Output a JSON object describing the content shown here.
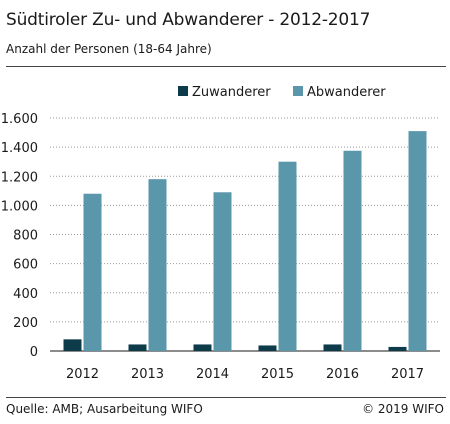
{
  "header": {
    "title": "Südtiroler Zu- und Abwanderer - 2012-2017",
    "subtitle": "Anzahl der Personen (18-64 Jahre)"
  },
  "footer": {
    "source": "Quelle: AMB; Ausarbeitung WIFO",
    "copyright": "© 2019 WIFO"
  },
  "colors": {
    "zuwanderer": "#0d3b4a",
    "abwanderer": "#5b97ab",
    "grid": "#9a9a9a"
  },
  "chart_data": {
    "type": "bar",
    "categories": [
      "2012",
      "2013",
      "2014",
      "2015",
      "2016",
      "2017"
    ],
    "series": [
      {
        "name": "Zuwanderer",
        "values": [
          80,
          45,
          45,
          38,
          45,
          28
        ]
      },
      {
        "name": "Abwanderer",
        "values": [
          1080,
          1180,
          1090,
          1300,
          1375,
          1510
        ]
      }
    ],
    "ylim": [
      0,
      1600
    ],
    "yticks": [
      0,
      200,
      400,
      600,
      800,
      1000,
      1200,
      1400,
      1600
    ],
    "ytick_labels": [
      "0",
      "200",
      "400",
      "600",
      "800",
      "1.000",
      "1.200",
      "1.400",
      "1.600"
    ],
    "grid": true,
    "legend_position": "top-center"
  }
}
